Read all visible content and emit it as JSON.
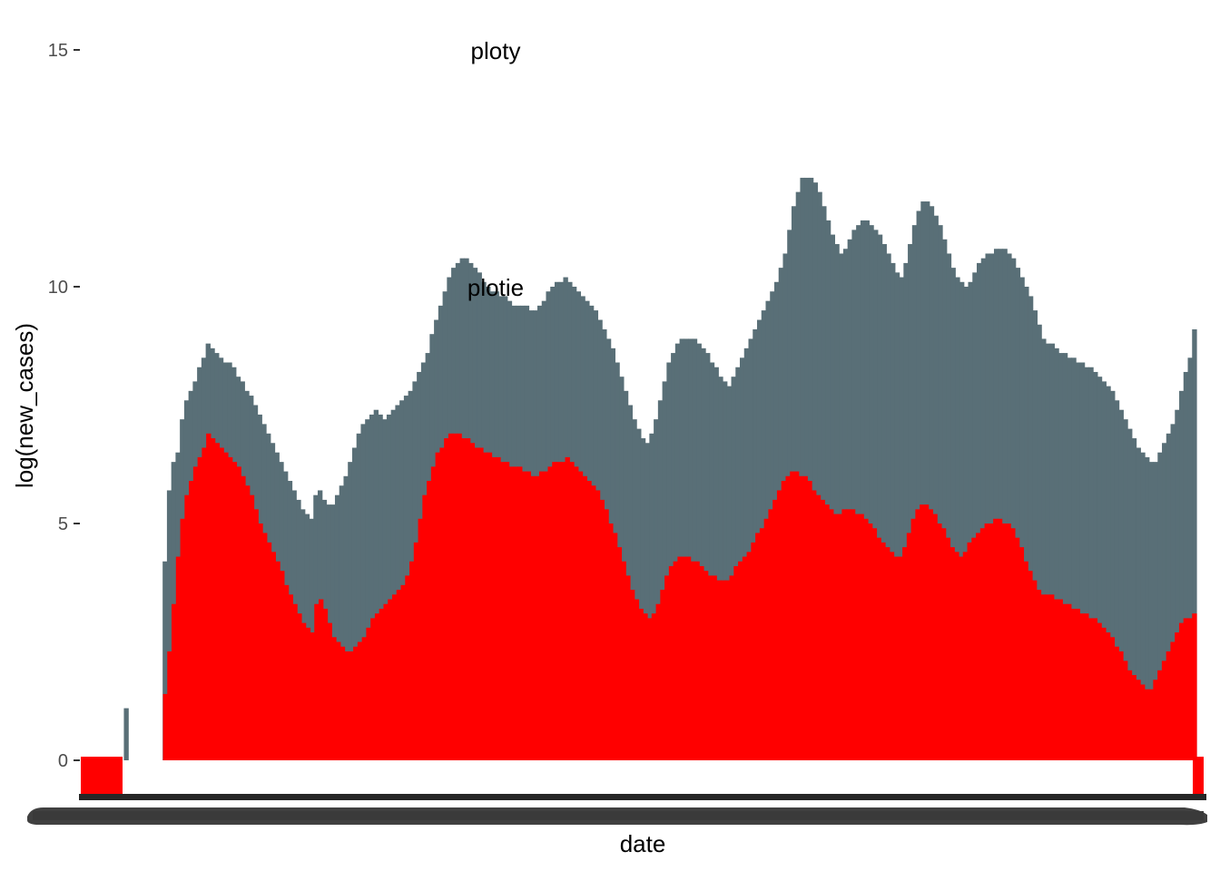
{
  "chart_data": {
    "type": "bar",
    "xlabel": "date",
    "ylabel": "log(new_cases)",
    "ylim": [
      0,
      15
    ],
    "grid": false,
    "legend": "none",
    "yticks": [
      "0",
      "5",
      "10",
      "15"
    ],
    "annotations": [
      "ploty",
      "plotie"
    ],
    "colors": {
      "series_world": "#596f77",
      "series_country": "#ff0000",
      "axis": "#262626",
      "text": "#000000"
    },
    "series": [
      {
        "values": [
          0,
          0,
          0,
          0,
          0,
          0,
          0,
          0,
          0,
          0,
          1.1,
          0,
          0,
          0,
          0,
          0,
          0,
          0,
          0,
          4.2,
          5.7,
          6.3,
          6.5,
          7.2,
          7.6,
          7.8,
          8.0,
          8.3,
          8.5,
          8.8,
          8.7,
          8.6,
          8.5,
          8.4,
          8.4,
          8.3,
          8.1,
          8.0,
          7.8,
          7.7,
          7.5,
          7.3,
          7.1,
          6.9,
          6.7,
          6.5,
          6.3,
          6.1,
          5.9,
          5.7,
          5.5,
          5.3,
          5.2,
          5.1,
          5.6,
          5.7,
          5.5,
          5.4,
          5.4,
          5.6,
          5.8,
          6.0,
          6.3,
          6.6,
          6.9,
          7.1,
          7.2,
          7.3,
          7.4,
          7.3,
          7.2,
          7.3,
          7.4,
          7.5,
          7.6,
          7.7,
          7.8,
          8.0,
          8.2,
          8.4,
          8.6,
          9.0,
          9.3,
          9.6,
          9.9,
          10.2,
          10.4,
          10.5,
          10.6,
          10.6,
          10.5,
          10.4,
          10.3,
          10.1,
          10.0,
          9.9,
          9.9,
          9.8,
          9.8,
          9.7,
          9.6,
          9.6,
          9.6,
          9.6,
          9.5,
          9.5,
          9.6,
          9.7,
          9.9,
          10.0,
          10.1,
          10.1,
          10.2,
          10.1,
          10.0,
          9.9,
          9.8,
          9.7,
          9.6,
          9.5,
          9.3,
          9.1,
          8.9,
          8.7,
          8.4,
          8.1,
          7.8,
          7.5,
          7.2,
          7.0,
          6.8,
          6.7,
          6.9,
          7.2,
          7.6,
          8.0,
          8.4,
          8.6,
          8.8,
          8.9,
          8.9,
          8.9,
          8.9,
          8.8,
          8.7,
          8.6,
          8.4,
          8.3,
          8.1,
          8.0,
          7.9,
          8.1,
          8.3,
          8.5,
          8.7,
          8.9,
          9.1,
          9.3,
          9.5,
          9.7,
          9.9,
          10.1,
          10.4,
          10.7,
          11.2,
          11.7,
          12.0,
          12.3,
          12.3,
          12.3,
          12.2,
          12.0,
          11.7,
          11.4,
          11.1,
          10.9,
          10.7,
          10.8,
          11.0,
          11.2,
          11.3,
          11.4,
          11.4,
          11.3,
          11.2,
          11.1,
          10.9,
          10.7,
          10.5,
          10.3,
          10.2,
          10.5,
          10.9,
          11.3,
          11.6,
          11.8,
          11.8,
          11.7,
          11.5,
          11.3,
          11.0,
          10.7,
          10.4,
          10.2,
          10.1,
          10.0,
          10.1,
          10.3,
          10.5,
          10.6,
          10.7,
          10.7,
          10.8,
          10.8,
          10.8,
          10.7,
          10.6,
          10.4,
          10.2,
          10.0,
          9.8,
          9.5,
          9.2,
          8.9,
          8.8,
          8.8,
          8.7,
          8.6,
          8.6,
          8.5,
          8.5,
          8.4,
          8.4,
          8.3,
          8.3,
          8.2,
          8.1,
          8.0,
          7.9,
          7.8,
          7.6,
          7.4,
          7.2,
          7.0,
          6.8,
          6.6,
          6.5,
          6.4,
          6.3,
          6.3,
          6.5,
          6.7,
          6.9,
          7.1,
          7.4,
          7.8,
          8.2,
          8.5,
          9.1
        ]
      },
      {
        "values": [
          0,
          0,
          0,
          0,
          0,
          0,
          0,
          0,
          0,
          0,
          0,
          0,
          0,
          0,
          0,
          0,
          0,
          0,
          0,
          1.4,
          2.3,
          3.3,
          4.3,
          5.1,
          5.6,
          5.9,
          6.2,
          6.4,
          6.6,
          6.9,
          6.8,
          6.7,
          6.6,
          6.5,
          6.4,
          6.3,
          6.2,
          6.0,
          5.8,
          5.6,
          5.3,
          5.0,
          4.8,
          4.6,
          4.4,
          4.2,
          4.0,
          3.7,
          3.5,
          3.3,
          3.1,
          2.9,
          2.8,
          2.7,
          3.3,
          3.4,
          3.2,
          2.9,
          2.6,
          2.5,
          2.4,
          2.3,
          2.3,
          2.4,
          2.5,
          2.6,
          2.8,
          3.0,
          3.1,
          3.2,
          3.3,
          3.4,
          3.5,
          3.6,
          3.7,
          3.9,
          4.2,
          4.6,
          5.1,
          5.6,
          5.9,
          6.2,
          6.5,
          6.6,
          6.8,
          6.9,
          6.9,
          6.9,
          6.8,
          6.8,
          6.7,
          6.6,
          6.6,
          6.5,
          6.5,
          6.4,
          6.4,
          6.3,
          6.3,
          6.2,
          6.2,
          6.2,
          6.1,
          6.1,
          6.0,
          6.0,
          6.1,
          6.1,
          6.2,
          6.3,
          6.3,
          6.3,
          6.4,
          6.3,
          6.2,
          6.1,
          6.0,
          5.9,
          5.8,
          5.7,
          5.5,
          5.3,
          5.0,
          4.8,
          4.5,
          4.2,
          3.9,
          3.6,
          3.4,
          3.2,
          3.1,
          3.0,
          3.1,
          3.3,
          3.6,
          3.9,
          4.1,
          4.2,
          4.3,
          4.3,
          4.3,
          4.2,
          4.2,
          4.1,
          4.0,
          3.9,
          3.9,
          3.8,
          3.8,
          3.8,
          3.9,
          4.1,
          4.2,
          4.3,
          4.4,
          4.6,
          4.8,
          4.9,
          5.1,
          5.3,
          5.5,
          5.7,
          5.9,
          6.0,
          6.1,
          6.1,
          6.0,
          6.0,
          5.9,
          5.7,
          5.6,
          5.5,
          5.4,
          5.3,
          5.2,
          5.2,
          5.3,
          5.3,
          5.3,
          5.2,
          5.2,
          5.1,
          5.0,
          4.9,
          4.7,
          4.6,
          4.5,
          4.4,
          4.3,
          4.3,
          4.5,
          4.8,
          5.1,
          5.3,
          5.4,
          5.4,
          5.3,
          5.2,
          5.0,
          4.9,
          4.7,
          4.5,
          4.4,
          4.3,
          4.4,
          4.6,
          4.7,
          4.8,
          4.9,
          5.0,
          5.0,
          5.1,
          5.1,
          5.0,
          5.0,
          4.9,
          4.7,
          4.5,
          4.2,
          4.0,
          3.8,
          3.6,
          3.5,
          3.5,
          3.5,
          3.4,
          3.4,
          3.3,
          3.3,
          3.2,
          3.2,
          3.1,
          3.1,
          3.0,
          3.0,
          2.9,
          2.8,
          2.7,
          2.6,
          2.4,
          2.3,
          2.1,
          1.9,
          1.8,
          1.7,
          1.6,
          1.5,
          1.5,
          1.7,
          1.9,
          2.1,
          2.3,
          2.5,
          2.7,
          2.9,
          3.0,
          3.0,
          3.1
        ]
      }
    ]
  }
}
